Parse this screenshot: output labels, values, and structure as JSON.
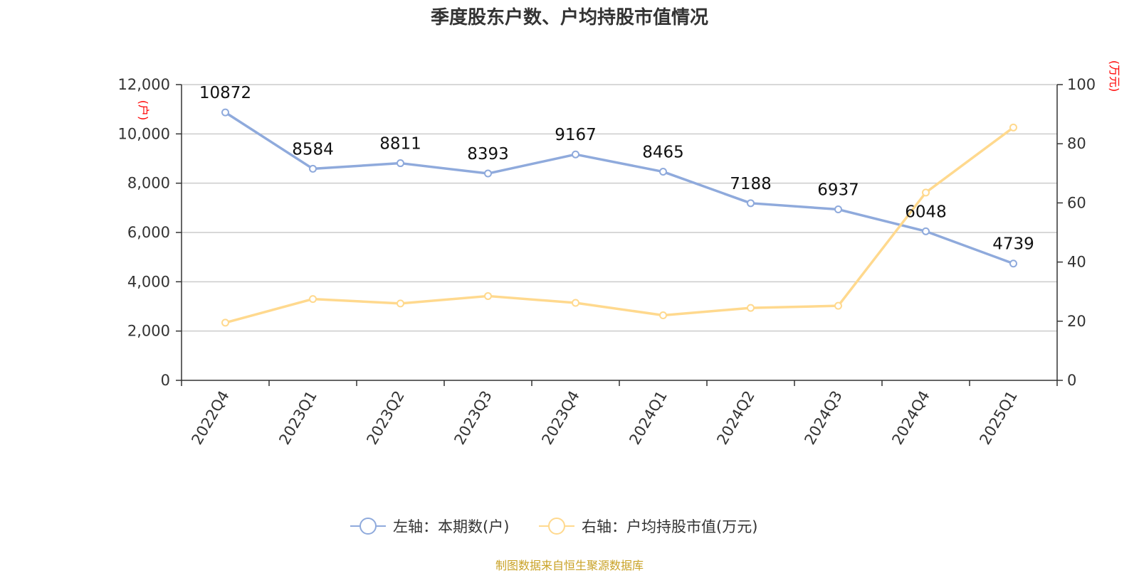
{
  "chart_data": {
    "type": "line",
    "title": "季度股东户数、户均持股市值情况",
    "source": "制图数据来自恒生聚源数据库",
    "categories": [
      "2022Q4",
      "2023Q1",
      "2023Q2",
      "2023Q3",
      "2023Q4",
      "2024Q1",
      "2024Q2",
      "2024Q3",
      "2024Q4",
      "2025Q1"
    ],
    "left_axis": {
      "unit": "(户)",
      "ylim": [
        0,
        12000
      ],
      "ticks": [
        "0",
        "2,000",
        "4,000",
        "6,000",
        "8,000",
        "10,000",
        "12,000"
      ]
    },
    "right_axis": {
      "unit": "(万元)",
      "ylim": [
        0,
        100
      ],
      "ticks": [
        "0",
        "20",
        "40",
        "60",
        "80",
        "100"
      ]
    },
    "grid": true,
    "legend_position": "bottom",
    "series": [
      {
        "name": "左轴：本期数(户)",
        "axis": "left",
        "color": "#8faadc",
        "values": [
          10872,
          8584,
          8811,
          8393,
          9167,
          8465,
          7188,
          6937,
          6048,
          4739
        ],
        "labels": [
          "10872",
          "8584",
          "8811",
          "8393",
          "9167",
          "8465",
          "7188",
          "6937",
          "6048",
          "4739"
        ]
      },
      {
        "name": "右轴：户均持股市值(万元)",
        "axis": "right",
        "color": "#ffd98e",
        "values": [
          19.5,
          27.5,
          26,
          28.5,
          26.2,
          22,
          24.5,
          25.2,
          63.5,
          85.5
        ]
      }
    ]
  }
}
